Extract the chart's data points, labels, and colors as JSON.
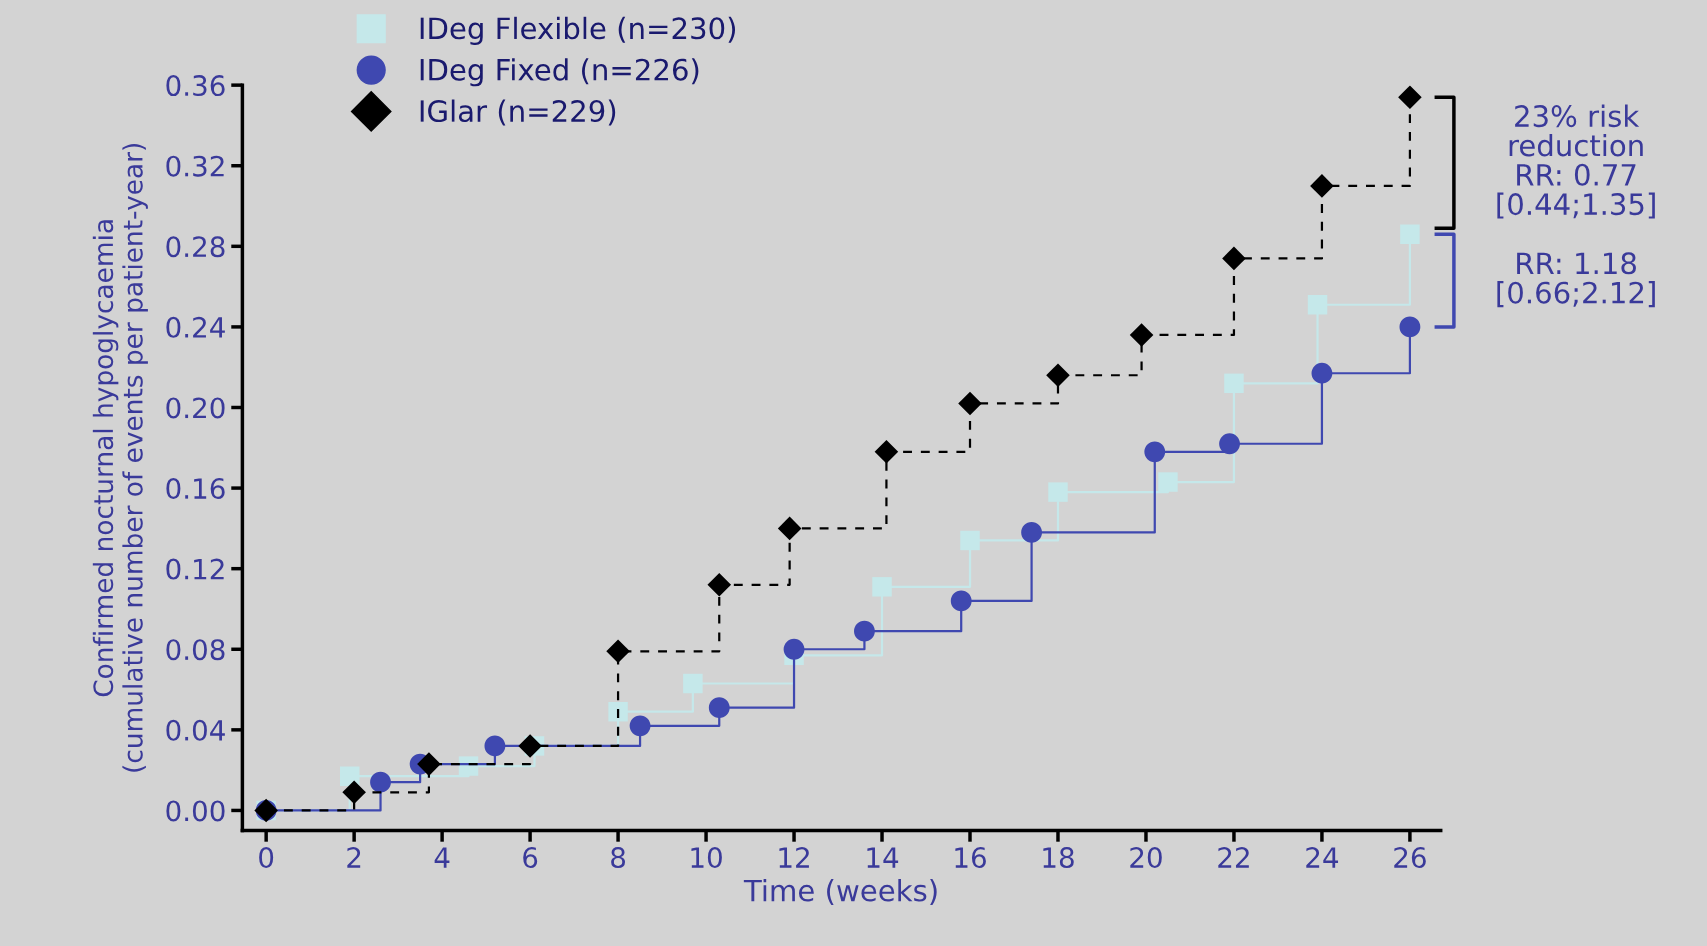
{
  "chart_data": {
    "type": "step",
    "xlabel": "Time (weeks)",
    "ylabel": "Confirmed nocturnal hypoglycaemia\n(cumulative number of events per patient-year)",
    "xlim": [
      -0.54,
      26.7
    ],
    "xticks": [
      0,
      2,
      4,
      6,
      8,
      10,
      12,
      14,
      16,
      18,
      20,
      22,
      24,
      26
    ],
    "ylim": [
      -0.01,
      0.36
    ],
    "yticks": [
      {
        "value": 0,
        "label": "0.00"
      },
      {
        "value": 0.04,
        "label": "0.04"
      },
      {
        "value": 0.08,
        "label": "0.08"
      },
      {
        "value": 0.12,
        "label": "0.12"
      },
      {
        "value": 0.16,
        "label": "0.16"
      },
      {
        "value": 0.2,
        "label": "0.20"
      },
      {
        "value": 0.24,
        "label": "0.24"
      },
      {
        "value": 0.28,
        "label": "0.28"
      },
      {
        "value": 0.32,
        "label": "0.32"
      },
      {
        "value": 0.36,
        "label": "0.36"
      }
    ],
    "grid": false,
    "legend": "top left",
    "series": [
      {
        "name": "IDeg Flexible (n=230)",
        "color": "#c5e8ea",
        "marker": "square",
        "line_style": "solid",
        "x": [
          0,
          1.9,
          4.6,
          6.1,
          8,
          9.7,
          12,
          14,
          16,
          18,
          20.5,
          22,
          23.9,
          26
        ],
        "values": [
          0,
          0.017,
          0.022,
          0.032,
          0.049,
          0.063,
          0.077,
          0.111,
          0.134,
          0.158,
          0.163,
          0.212,
          0.251,
          0.286
        ]
      },
      {
        "name": "IDeg Fixed (n=226)",
        "color": "#3f48b0",
        "marker": "circle",
        "line_style": "solid",
        "x": [
          0,
          2.6,
          3.5,
          5.2,
          8.5,
          10.3,
          12,
          13.6,
          15.8,
          17.4,
          20.2,
          21.9,
          24,
          26
        ],
        "values": [
          0,
          0.014,
          0.023,
          0.032,
          0.042,
          0.051,
          0.08,
          0.089,
          0.104,
          0.138,
          0.178,
          0.182,
          0.217,
          0.24
        ]
      },
      {
        "name": "IGlar (n=229)",
        "color": "#000000",
        "marker": "diamond",
        "line_style": "dashed",
        "x": [
          0,
          2,
          3.7,
          6,
          8,
          10.3,
          11.9,
          14.1,
          16,
          18,
          19.9,
          22,
          24,
          26
        ],
        "values": [
          0,
          0.009,
          0.023,
          0.032,
          0.079,
          0.112,
          0.14,
          0.178,
          0.202,
          0.216,
          0.236,
          0.274,
          0.31,
          0.354
        ]
      }
    ],
    "annotations": [
      "23% risk\nreduction\nRR: 0.77\n[0.44;1.35]",
      "RR: 1.18\n[0.66;2.12]"
    ]
  }
}
